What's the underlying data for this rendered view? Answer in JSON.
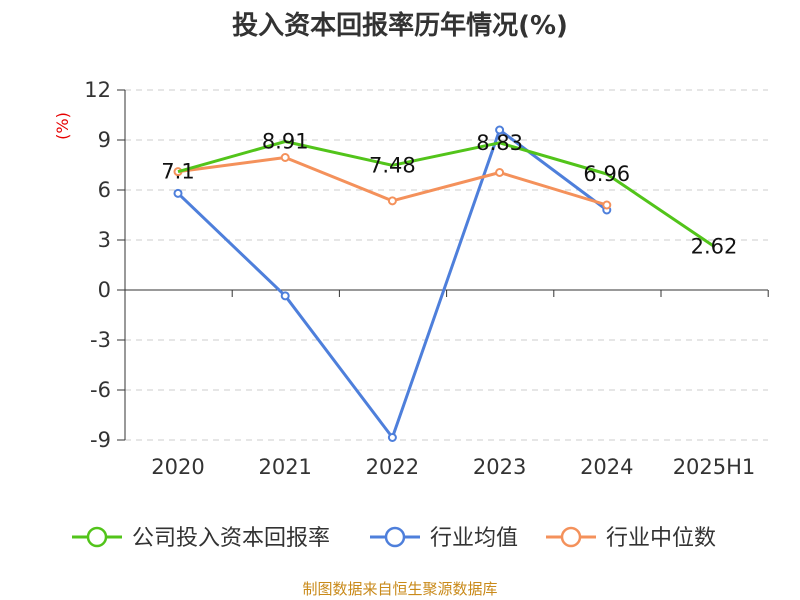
{
  "chart_data": {
    "type": "line",
    "title": "投入资本回报率历年情况(%)",
    "ylabel": "(%)",
    "categories": [
      "2020",
      "2021",
      "2022",
      "2023",
      "2024",
      "2025H1"
    ],
    "ylim": [
      -9,
      12
    ],
    "yticks": [
      12,
      9,
      6,
      3,
      0,
      -3,
      -6,
      -9
    ],
    "grid": true,
    "legend_position": "bottom",
    "series": [
      {
        "name": "公司投入资本回报率",
        "color": "#52c41a",
        "values": [
          7.1,
          8.91,
          7.48,
          8.83,
          6.96,
          2.62
        ],
        "labels": [
          "7.1",
          "8.91",
          "7.48",
          "8.83",
          "6.96",
          "2.62"
        ]
      },
      {
        "name": "行业均值",
        "color": "#4e7fdb",
        "values": [
          5.8,
          -0.35,
          -8.85,
          9.6,
          4.8,
          null
        ]
      },
      {
        "name": "行业中位数",
        "color": "#f4915b",
        "values": [
          7.1,
          7.95,
          5.35,
          7.05,
          5.1,
          null
        ]
      }
    ],
    "source": "制图数据来自恒生聚源数据库"
  }
}
